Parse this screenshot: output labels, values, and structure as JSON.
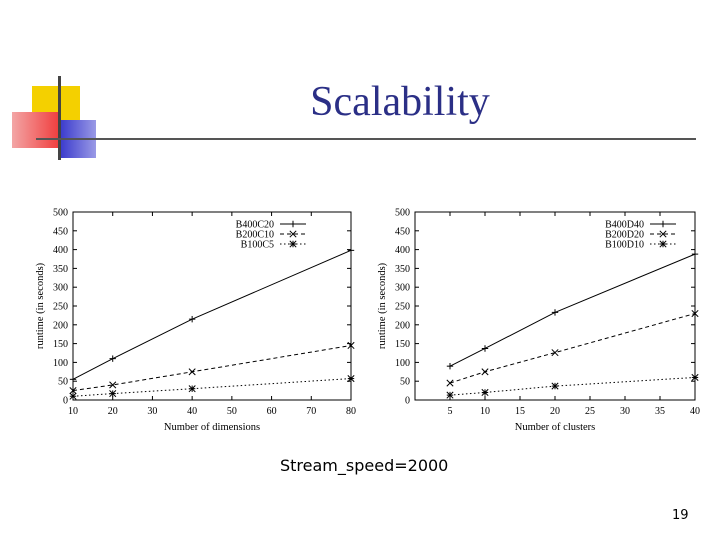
{
  "slide": {
    "title": "Scalability",
    "caption": "Stream_speed=2000",
    "page_number": "19",
    "colors": {
      "title": "#2b2f86",
      "deco_yellow": "#f4d000",
      "deco_red": "#f04040",
      "deco_blue": "#3a3acc",
      "rule": "#555555"
    }
  },
  "chart_data": [
    {
      "type": "line",
      "xlabel": "Number of dimensions",
      "ylabel": "runtime (in seconds)",
      "xlim": [
        10,
        80
      ],
      "ylim": [
        0,
        500
      ],
      "xticks": [
        10,
        20,
        30,
        40,
        50,
        60,
        70,
        80
      ],
      "yticks": [
        0,
        50,
        100,
        150,
        200,
        250,
        300,
        350,
        400,
        450,
        500
      ],
      "legend_position": "top-right",
      "grid": false,
      "series": [
        {
          "name": "B400C20",
          "marker": "+",
          "dash": "solid",
          "x": [
            10,
            20,
            40,
            80
          ],
          "values": [
            55,
            110,
            215,
            398
          ]
        },
        {
          "name": "B200C10",
          "marker": "x",
          "dash": "dashed",
          "x": [
            10,
            20,
            40,
            80
          ],
          "values": [
            25,
            40,
            75,
            145
          ]
        },
        {
          "name": "B100C5",
          "marker": "*",
          "dash": "dotted",
          "x": [
            10,
            20,
            40,
            80
          ],
          "values": [
            10,
            17,
            30,
            57
          ]
        }
      ]
    },
    {
      "type": "line",
      "xlabel": "Number of clusters",
      "ylabel": "runtime (in seconds)",
      "xlim": [
        0,
        40
      ],
      "ylim": [
        0,
        500
      ],
      "xticks": [
        5,
        10,
        15,
        20,
        25,
        30,
        35,
        40
      ],
      "yticks": [
        0,
        50,
        100,
        150,
        200,
        250,
        300,
        350,
        400,
        450,
        500
      ],
      "legend_position": "top-right",
      "grid": false,
      "series": [
        {
          "name": "B400D40",
          "marker": "+",
          "dash": "solid",
          "x": [
            5,
            10,
            20,
            40
          ],
          "values": [
            90,
            137,
            233,
            388
          ]
        },
        {
          "name": "B200D20",
          "marker": "x",
          "dash": "dashed",
          "x": [
            5,
            10,
            20,
            40
          ],
          "values": [
            45,
            75,
            126,
            230
          ]
        },
        {
          "name": "B100D10",
          "marker": "*",
          "dash": "dotted",
          "x": [
            5,
            10,
            20,
            40
          ],
          "values": [
            13,
            20,
            37,
            60
          ]
        }
      ]
    }
  ]
}
